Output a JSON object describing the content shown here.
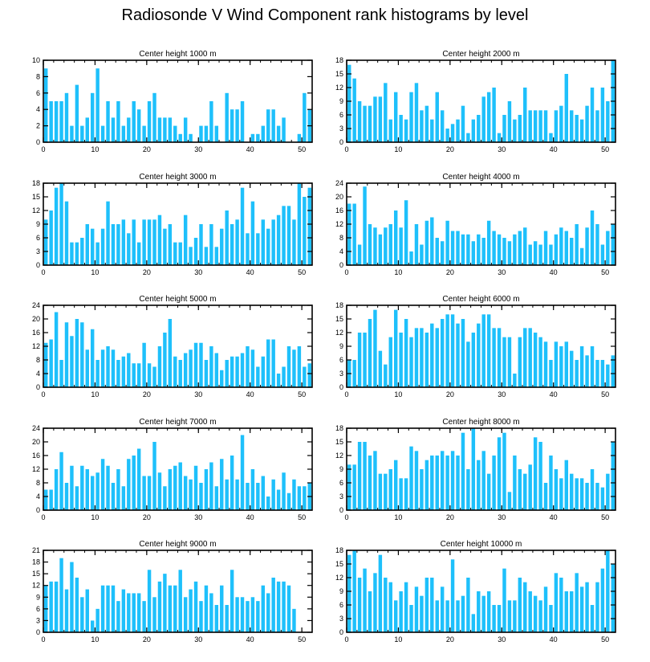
{
  "title": "Radiosonde V Wind Component rank histograms by level",
  "colors": {
    "bar": "#1EC0FB",
    "axis": "#000000"
  },
  "chart_data": [
    {
      "type": "bar",
      "title": "Center height 1000 m",
      "x": [
        0,
        1,
        2,
        3,
        4,
        5,
        6,
        7,
        8,
        9,
        10,
        11,
        12,
        13,
        14,
        15,
        16,
        17,
        18,
        19,
        20,
        21,
        22,
        23,
        24,
        25,
        26,
        27,
        28,
        29,
        30,
        31,
        32,
        33,
        34,
        35,
        36,
        37,
        38,
        39,
        40,
        41,
        42,
        43,
        44,
        45,
        46,
        47,
        48,
        49,
        50,
        51
      ],
      "values": [
        9,
        5,
        5,
        5,
        6,
        2,
        7,
        2,
        3,
        6,
        9,
        2,
        5,
        3,
        5,
        2,
        3,
        5,
        4,
        2,
        5,
        6,
        3,
        3,
        3,
        2,
        1,
        3,
        1,
        0,
        2,
        2,
        5,
        2,
        0,
        6,
        4,
        4,
        5,
        0,
        1,
        1,
        2,
        4,
        4,
        2,
        3,
        0,
        0,
        1,
        6,
        4
      ],
      "xlim": [
        0,
        52
      ],
      "ylim": [
        0,
        10
      ],
      "yticks": [
        0,
        2,
        4,
        6,
        8,
        10
      ],
      "xticks": [
        0,
        10,
        20,
        30,
        40,
        50
      ]
    },
    {
      "type": "bar",
      "title": "Center height 2000 m",
      "x": [
        0,
        1,
        2,
        3,
        4,
        5,
        6,
        7,
        8,
        9,
        10,
        11,
        12,
        13,
        14,
        15,
        16,
        17,
        18,
        19,
        20,
        21,
        22,
        23,
        24,
        25,
        26,
        27,
        28,
        29,
        30,
        31,
        32,
        33,
        34,
        35,
        36,
        37,
        38,
        39,
        40,
        41,
        42,
        43,
        44,
        45,
        46,
        47,
        48,
        49,
        50,
        51
      ],
      "values": [
        17,
        14,
        9,
        8,
        8,
        10,
        10,
        13,
        5,
        11,
        6,
        5,
        11,
        13,
        7,
        8,
        5,
        11,
        7,
        3,
        4,
        5,
        8,
        2,
        5,
        6,
        10,
        11,
        12,
        2,
        6,
        9,
        5,
        6,
        12,
        7,
        7,
        7,
        7,
        2,
        7,
        8,
        15,
        7,
        6,
        5,
        8,
        12,
        7,
        12,
        9,
        18
      ],
      "xlim": [
        0,
        52
      ],
      "ylim": [
        0,
        18
      ],
      "yticks": [
        0,
        3,
        6,
        9,
        12,
        15,
        18
      ],
      "xticks": [
        0,
        10,
        20,
        30,
        40,
        50
      ]
    },
    {
      "type": "bar",
      "title": "Center height 3000 m",
      "x": [
        0,
        1,
        2,
        3,
        4,
        5,
        6,
        7,
        8,
        9,
        10,
        11,
        12,
        13,
        14,
        15,
        16,
        17,
        18,
        19,
        20,
        21,
        22,
        23,
        24,
        25,
        26,
        27,
        28,
        29,
        30,
        31,
        32,
        33,
        34,
        35,
        36,
        37,
        38,
        39,
        40,
        41,
        42,
        43,
        44,
        45,
        46,
        47,
        48,
        49,
        50,
        51
      ],
      "values": [
        10,
        12,
        17,
        18,
        14,
        5,
        5,
        6,
        9,
        8,
        5,
        8,
        14,
        9,
        9,
        10,
        7,
        10,
        5,
        10,
        10,
        10,
        11,
        8,
        9,
        5,
        5,
        11,
        4,
        6,
        9,
        4,
        9,
        4,
        8,
        12,
        9,
        10,
        17,
        7,
        14,
        7,
        10,
        8,
        10,
        11,
        13,
        13,
        10,
        18,
        15,
        17
      ],
      "xlim": [
        0,
        52
      ],
      "ylim": [
        0,
        18
      ],
      "yticks": [
        0,
        3,
        6,
        9,
        12,
        15,
        18
      ],
      "xticks": [
        0,
        10,
        20,
        30,
        40,
        50
      ]
    },
    {
      "type": "bar",
      "title": "Center height 4000 m",
      "x": [
        0,
        1,
        2,
        3,
        4,
        5,
        6,
        7,
        8,
        9,
        10,
        11,
        12,
        13,
        14,
        15,
        16,
        17,
        18,
        19,
        20,
        21,
        22,
        23,
        24,
        25,
        26,
        27,
        28,
        29,
        30,
        31,
        32,
        33,
        34,
        35,
        36,
        37,
        38,
        39,
        40,
        41,
        42,
        43,
        44,
        45,
        46,
        47,
        48,
        49,
        50,
        51
      ],
      "values": [
        18,
        18,
        6,
        23,
        12,
        11,
        9,
        11,
        12,
        16,
        11,
        19,
        4,
        12,
        6,
        13,
        14,
        8,
        7,
        13,
        10,
        10,
        9,
        9,
        7,
        9,
        8,
        13,
        10,
        9,
        8,
        7,
        9,
        10,
        11,
        6,
        7,
        6,
        10,
        6,
        9,
        11,
        10,
        8,
        12,
        5,
        11,
        16,
        12,
        6,
        10,
        12
      ],
      "xlim": [
        0,
        52
      ],
      "ylim": [
        0,
        24
      ],
      "yticks": [
        0,
        4,
        8,
        12,
        16,
        20,
        24
      ],
      "xticks": [
        0,
        10,
        20,
        30,
        40,
        50
      ]
    },
    {
      "type": "bar",
      "title": "Center height 5000 m",
      "x": [
        0,
        1,
        2,
        3,
        4,
        5,
        6,
        7,
        8,
        9,
        10,
        11,
        12,
        13,
        14,
        15,
        16,
        17,
        18,
        19,
        20,
        21,
        22,
        23,
        24,
        25,
        26,
        27,
        28,
        29,
        30,
        31,
        32,
        33,
        34,
        35,
        36,
        37,
        38,
        39,
        40,
        41,
        42,
        43,
        44,
        45,
        46,
        47,
        48,
        49,
        50,
        51
      ],
      "values": [
        13,
        14,
        22,
        8,
        19,
        15,
        20,
        19,
        11,
        17,
        8,
        11,
        12,
        11,
        8,
        9,
        10,
        7,
        7,
        13,
        7,
        6,
        12,
        16,
        20,
        9,
        8,
        10,
        11,
        13,
        13,
        8,
        12,
        10,
        5,
        8,
        9,
        9,
        10,
        12,
        11,
        6,
        9,
        14,
        14,
        4,
        6,
        12,
        11,
        12,
        6,
        7
      ],
      "xlim": [
        0,
        52
      ],
      "ylim": [
        0,
        24
      ],
      "yticks": [
        0,
        4,
        8,
        12,
        16,
        20,
        24
      ],
      "xticks": [
        0,
        10,
        20,
        30,
        40,
        50
      ]
    },
    {
      "type": "bar",
      "title": "Center height 6000 m",
      "x": [
        0,
        1,
        2,
        3,
        4,
        5,
        6,
        7,
        8,
        9,
        10,
        11,
        12,
        13,
        14,
        15,
        16,
        17,
        18,
        19,
        20,
        21,
        22,
        23,
        24,
        25,
        26,
        27,
        28,
        29,
        30,
        31,
        32,
        33,
        34,
        35,
        36,
        37,
        38,
        39,
        40,
        41,
        42,
        43,
        44,
        45,
        46,
        47,
        48,
        49,
        50,
        51
      ],
      "values": [
        6,
        6,
        12,
        12,
        15,
        17,
        8,
        5,
        11,
        17,
        12,
        15,
        11,
        13,
        13,
        12,
        14,
        13,
        15,
        16,
        16,
        14,
        15,
        10,
        12,
        14,
        16,
        16,
        13,
        13,
        11,
        11,
        3,
        11,
        13,
        13,
        12,
        11,
        10,
        6,
        10,
        9,
        10,
        8,
        6,
        9,
        7,
        9,
        6,
        6,
        5,
        7
      ],
      "xlim": [
        0,
        52
      ],
      "ylim": [
        0,
        18
      ],
      "yticks": [
        0,
        3,
        6,
        9,
        12,
        15,
        18
      ],
      "xticks": [
        0,
        10,
        20,
        30,
        40,
        50
      ]
    },
    {
      "type": "bar",
      "title": "Center height 7000 m",
      "x": [
        0,
        1,
        2,
        3,
        4,
        5,
        6,
        7,
        8,
        9,
        10,
        11,
        12,
        13,
        14,
        15,
        16,
        17,
        18,
        19,
        20,
        21,
        22,
        23,
        24,
        25,
        26,
        27,
        28,
        29,
        30,
        31,
        32,
        33,
        34,
        35,
        36,
        37,
        38,
        39,
        40,
        41,
        42,
        43,
        44,
        45,
        46,
        47,
        48,
        49,
        50,
        51
      ],
      "values": [
        6,
        6,
        12,
        17,
        8,
        13,
        7,
        13,
        12,
        10,
        11,
        15,
        13,
        8,
        12,
        7,
        15,
        16,
        18,
        10,
        10,
        20,
        11,
        7,
        12,
        13,
        14,
        10,
        9,
        13,
        8,
        12,
        14,
        7,
        15,
        9,
        16,
        9,
        22,
        8,
        12,
        8,
        10,
        4,
        9,
        6,
        11,
        5,
        9,
        7,
        7,
        8
      ],
      "xlim": [
        0,
        52
      ],
      "ylim": [
        0,
        24
      ],
      "yticks": [
        0,
        4,
        8,
        12,
        16,
        20,
        24
      ],
      "xticks": [
        0,
        10,
        20,
        30,
        40,
        50
      ]
    },
    {
      "type": "bar",
      "title": "Center height 8000 m",
      "x": [
        0,
        1,
        2,
        3,
        4,
        5,
        6,
        7,
        8,
        9,
        10,
        11,
        12,
        13,
        14,
        15,
        16,
        17,
        18,
        19,
        20,
        21,
        22,
        23,
        24,
        25,
        26,
        27,
        28,
        29,
        30,
        31,
        32,
        33,
        34,
        35,
        36,
        37,
        38,
        39,
        40,
        41,
        42,
        43,
        44,
        45,
        46,
        47,
        48,
        49,
        50,
        51
      ],
      "values": [
        10,
        10,
        15,
        15,
        12,
        13,
        8,
        8,
        9,
        11,
        7,
        7,
        14,
        13,
        9,
        11,
        12,
        12,
        13,
        12,
        13,
        12,
        17,
        9,
        18,
        11,
        13,
        8,
        12,
        16,
        17,
        4,
        12,
        9,
        8,
        10,
        16,
        15,
        6,
        12,
        9,
        7,
        11,
        8,
        7,
        7,
        6,
        9,
        6,
        5,
        8,
        15
      ],
      "xlim": [
        0,
        52
      ],
      "ylim": [
        0,
        18
      ],
      "yticks": [
        0,
        3,
        6,
        9,
        12,
        15,
        18
      ],
      "xticks": [
        0,
        10,
        20,
        30,
        40,
        50
      ]
    },
    {
      "type": "bar",
      "title": "Center height 9000 m",
      "x": [
        0,
        1,
        2,
        3,
        4,
        5,
        6,
        7,
        8,
        9,
        10,
        11,
        12,
        13,
        14,
        15,
        16,
        17,
        18,
        19,
        20,
        21,
        22,
        23,
        24,
        25,
        26,
        27,
        28,
        29,
        30,
        31,
        32,
        33,
        34,
        35,
        36,
        37,
        38,
        39,
        40,
        41,
        42,
        43,
        44,
        45,
        46,
        47,
        48,
        49,
        50,
        51
      ],
      "values": [
        12,
        13,
        13,
        19,
        11,
        18,
        14,
        9,
        11,
        3,
        6,
        12,
        12,
        12,
        8,
        11,
        10,
        10,
        10,
        8,
        16,
        9,
        13,
        15,
        12,
        12,
        16,
        9,
        11,
        13,
        8,
        12,
        10,
        7,
        12,
        7,
        16,
        9,
        9,
        8,
        9,
        8,
        12,
        10,
        14,
        13,
        13,
        12,
        6,
        0,
        0,
        0
      ],
      "xlim": [
        0,
        52
      ],
      "ylim": [
        0,
        21
      ],
      "yticks": [
        0,
        3,
        6,
        9,
        12,
        15,
        18,
        21
      ],
      "xticks": [
        0,
        10,
        20,
        30,
        40,
        50
      ]
    },
    {
      "type": "bar",
      "title": "Center height 10000 m",
      "x": [
        0,
        1,
        2,
        3,
        4,
        5,
        6,
        7,
        8,
        9,
        10,
        11,
        12,
        13,
        14,
        15,
        16,
        17,
        18,
        19,
        20,
        21,
        22,
        23,
        24,
        25,
        26,
        27,
        28,
        29,
        30,
        31,
        32,
        33,
        34,
        35,
        36,
        37,
        38,
        39,
        40,
        41,
        42,
        43,
        44,
        45,
        46,
        47,
        48,
        49,
        50,
        51
      ],
      "values": [
        17,
        18,
        12,
        14,
        9,
        13,
        17,
        12,
        11,
        7,
        9,
        11,
        6,
        10,
        8,
        12,
        12,
        7,
        10,
        7,
        16,
        7,
        8,
        12,
        4,
        9,
        8,
        9,
        6,
        6,
        14,
        7,
        7,
        12,
        11,
        9,
        8,
        7,
        10,
        6,
        13,
        12,
        9,
        9,
        13,
        10,
        11,
        6,
        11,
        14,
        18,
        15
      ],
      "xlim": [
        0,
        52
      ],
      "ylim": [
        0,
        18
      ],
      "yticks": [
        0,
        3,
        6,
        9,
        12,
        15,
        18
      ],
      "xticks": [
        0,
        10,
        20,
        30,
        40,
        50
      ]
    }
  ]
}
